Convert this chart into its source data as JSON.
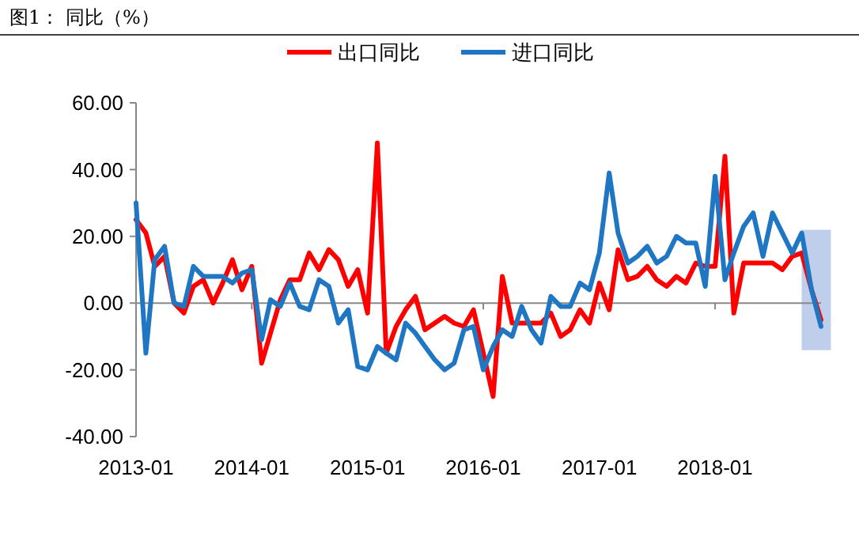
{
  "chart_data": {
    "type": "line",
    "title": "图1：  同比（%）",
    "x": [
      "2013-01",
      "2013-02",
      "2013-03",
      "2013-04",
      "2013-05",
      "2013-06",
      "2013-07",
      "2013-08",
      "2013-09",
      "2013-10",
      "2013-11",
      "2013-12",
      "2014-01",
      "2014-02",
      "2014-03",
      "2014-04",
      "2014-05",
      "2014-06",
      "2014-07",
      "2014-08",
      "2014-09",
      "2014-10",
      "2014-11",
      "2014-12",
      "2015-01",
      "2015-02",
      "2015-03",
      "2015-04",
      "2015-05",
      "2015-06",
      "2015-07",
      "2015-08",
      "2015-09",
      "2015-10",
      "2015-11",
      "2015-12",
      "2016-01",
      "2016-02",
      "2016-03",
      "2016-04",
      "2016-05",
      "2016-06",
      "2016-07",
      "2016-08",
      "2016-09",
      "2016-10",
      "2016-11",
      "2016-12",
      "2017-01",
      "2017-02",
      "2017-03",
      "2017-04",
      "2017-05",
      "2017-06",
      "2017-07",
      "2017-08",
      "2017-09",
      "2017-10",
      "2017-11",
      "2017-12",
      "2018-01",
      "2018-02",
      "2018-03",
      "2018-04",
      "2018-05",
      "2018-06",
      "2018-07",
      "2018-08",
      "2018-09",
      "2018-10",
      "2018-11",
      "2018-12"
    ],
    "series": [
      {
        "name": "出口同比",
        "color": "#ff0000",
        "values": [
          25,
          21,
          11,
          14,
          0,
          -3,
          5,
          7,
          0,
          6,
          13,
          4,
          11,
          -18,
          -9,
          1,
          7,
          7,
          15,
          10,
          16,
          13,
          5,
          10,
          -3,
          48,
          -15,
          -7,
          -2,
          2,
          -8,
          -6,
          -4,
          -6,
          -7,
          -2,
          -15,
          -28,
          8,
          -6,
          -6,
          -6,
          -6,
          -3,
          -10,
          -8,
          -2,
          -6,
          6,
          -2,
          16,
          7,
          8,
          11,
          7,
          5,
          8,
          6,
          12,
          11,
          11,
          44,
          -3,
          12,
          12,
          12,
          12,
          10,
          14,
          15,
          4,
          -5
        ]
      },
      {
        "name": "进口同比",
        "color": "#1f77c4",
        "values": [
          30,
          -15,
          13,
          17,
          0,
          -1,
          11,
          8,
          8,
          8,
          6,
          9,
          10,
          -11,
          1,
          -1,
          6,
          -1,
          -2,
          7,
          5,
          -6,
          -2,
          -19,
          -20,
          -13,
          -15,
          -17,
          -6,
          -9,
          -13,
          -17,
          -20,
          -18,
          -8,
          -7,
          -20,
          -13,
          -8,
          -10,
          -1,
          -8,
          -12,
          2,
          -1,
          -1,
          6,
          4,
          15,
          39,
          21,
          12,
          14,
          17,
          12,
          14,
          20,
          18,
          18,
          5,
          38,
          7,
          15,
          23,
          27,
          14,
          27,
          21,
          15,
          21,
          4,
          -7
        ]
      }
    ],
    "xlim": [
      "2013-01",
      "2018-12"
    ],
    "xticks": [
      {
        "value": "2013-01",
        "label": "2013-01"
      },
      {
        "value": "2014-01",
        "label": "2014-01"
      },
      {
        "value": "2015-01",
        "label": "2015-01"
      },
      {
        "value": "2016-01",
        "label": "2016-01"
      },
      {
        "value": "2017-01",
        "label": "2017-01"
      },
      {
        "value": "2018-01",
        "label": "2018-01"
      }
    ],
    "ylim": [
      -40,
      60
    ],
    "yticks": [
      {
        "value": -40,
        "label": "-40.00"
      },
      {
        "value": -20,
        "label": "-20.00"
      },
      {
        "value": 0,
        "label": "0.00"
      },
      {
        "value": 20,
        "label": "20.00"
      },
      {
        "value": 40,
        "label": "40.00"
      },
      {
        "value": 60,
        "label": "60.00"
      }
    ],
    "bands": [
      {
        "axis": "x",
        "from": "2018-10",
        "to": "2019-01",
        "color": "#b4c7e7"
      }
    ],
    "legend": "top"
  }
}
